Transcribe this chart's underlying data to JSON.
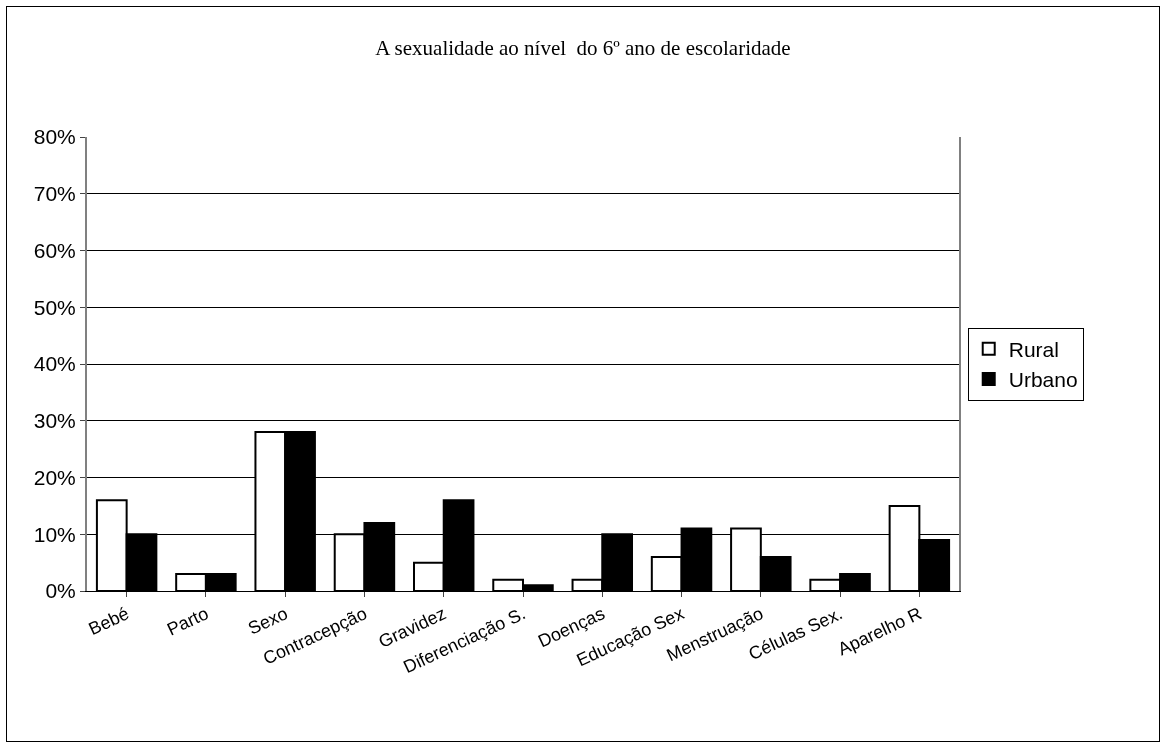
{
  "chart_data": {
    "type": "bar",
    "title": "A sexualidade ao nível  do 6º ano de escolaridade",
    "categories": [
      "Bebé",
      "Parto",
      "Sexo",
      "Contracepção",
      "Gravidez",
      "Diferenciação S.",
      "Doenças",
      "Educação Sex",
      "Menstruação",
      "Células Sex.",
      "Aparelho R"
    ],
    "series": [
      {
        "name": "Rural",
        "color": "#ffffff",
        "values": [
          0.16,
          0.03,
          0.28,
          0.1,
          0.05,
          0.02,
          0.02,
          0.06,
          0.11,
          0.02,
          0.15
        ]
      },
      {
        "name": "Urbano",
        "color": "#000000",
        "values": [
          0.1,
          0.03,
          0.28,
          0.12,
          0.16,
          0.01,
          0.1,
          0.11,
          0.06,
          0.03,
          0.09
        ]
      }
    ],
    "ylim": [
      0,
      0.8
    ],
    "yticks": [
      {
        "value": 0,
        "label": "0%"
      },
      {
        "value": 0.1,
        "label": "10%"
      },
      {
        "value": 0.2,
        "label": "20%"
      },
      {
        "value": 0.3,
        "label": "30%"
      },
      {
        "value": 0.4,
        "label": "40%"
      },
      {
        "value": 0.5,
        "label": "50%"
      },
      {
        "value": 0.6,
        "label": "60%"
      },
      {
        "value": 0.7,
        "label": "70%"
      },
      {
        "value": 0.8,
        "label": "80%"
      }
    ],
    "grid": "y",
    "legend": "right"
  }
}
